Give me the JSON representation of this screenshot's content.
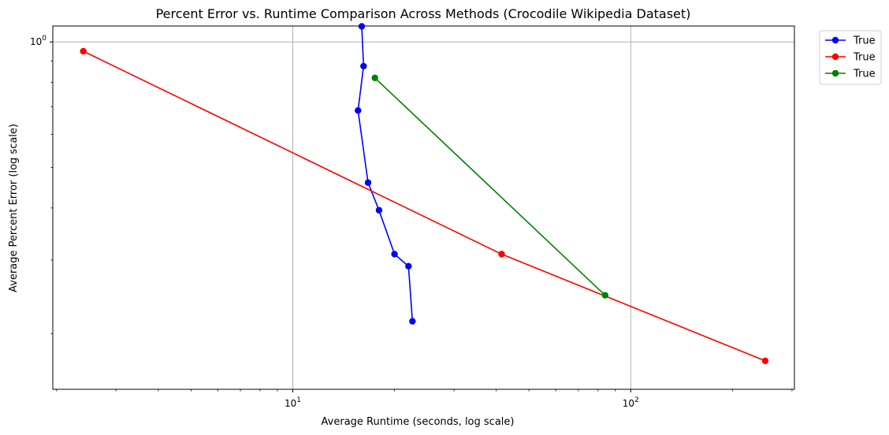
{
  "chart_data": {
    "type": "line",
    "title": "Percent Error vs. Runtime Comparison Across Methods (Crocodile Wikipedia Dataset)",
    "xlabel": "Average Runtime (seconds, log scale)",
    "ylabel": "Average Percent Error (log scale)",
    "xscale": "log",
    "yscale": "log",
    "xlim": [
      1.95,
      305
    ],
    "ylim": [
      0.147,
      1.092
    ],
    "x_ticks": [
      {
        "value": 10,
        "label": "10^1"
      },
      {
        "value": 100,
        "label": "10^2"
      }
    ],
    "y_ticks": [
      {
        "value": 1,
        "label": "10^0"
      }
    ],
    "grid": true,
    "legend_position": "outside-top-right",
    "series": [
      {
        "name": "True",
        "color": "#0000ff",
        "marker": "circle",
        "x": [
          16.0,
          16.2,
          15.6,
          16.7,
          18.0,
          20.0,
          22.0,
          22.6
        ],
        "y": [
          1.09,
          0.875,
          0.685,
          0.46,
          0.395,
          0.31,
          0.29,
          0.214
        ]
      },
      {
        "name": "True",
        "color": "#ff0000",
        "marker": "circle",
        "x": [
          2.4,
          41.5,
          250
        ],
        "y": [
          0.95,
          0.31,
          0.172
        ]
      },
      {
        "name": "True",
        "color": "#008000",
        "marker": "circle",
        "x": [
          17.5,
          84.0
        ],
        "y": [
          0.82,
          0.247
        ]
      }
    ]
  }
}
